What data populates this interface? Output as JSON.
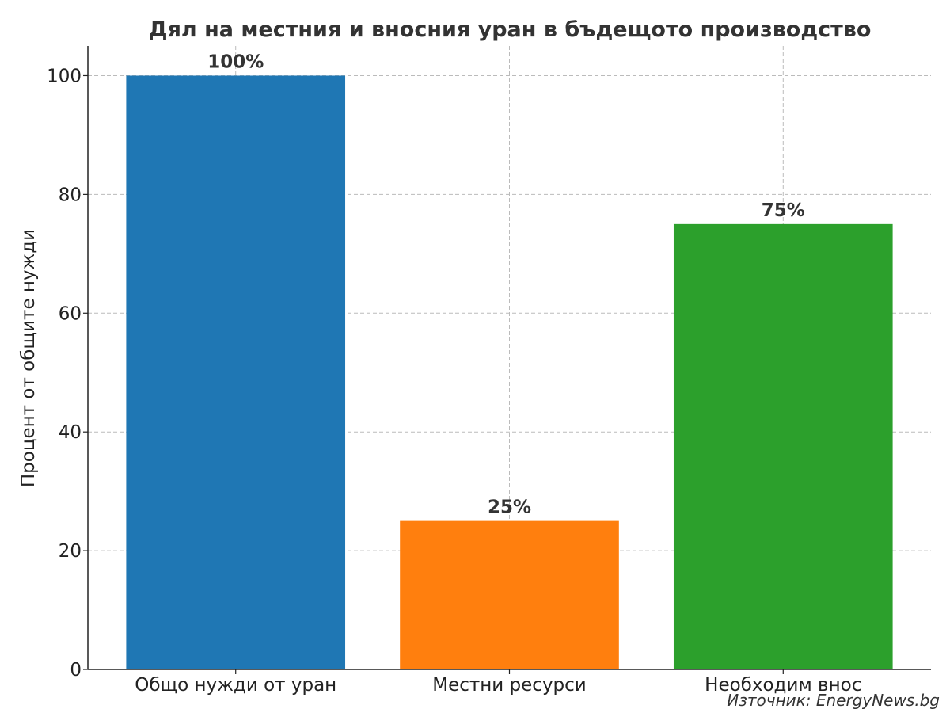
{
  "chart_data": {
    "type": "bar",
    "title": "Дял на местния и вносния уран в бъдещото производство",
    "xlabel": "",
    "ylabel": "Процент от общите нужди",
    "categories": [
      "Общо нужди от уран",
      "Местни ресурси",
      "Необходим внос"
    ],
    "values": [
      100,
      25,
      75
    ],
    "data_labels": [
      "100%",
      "25%",
      "75%"
    ],
    "colors": [
      "#1f77b4",
      "#ff7f0e",
      "#2ca02c"
    ],
    "ylim": [
      0,
      105
    ],
    "yticks": [
      0,
      20,
      40,
      60,
      80,
      100
    ],
    "grid": true,
    "source": "Източник: EnergyNews.bg"
  }
}
